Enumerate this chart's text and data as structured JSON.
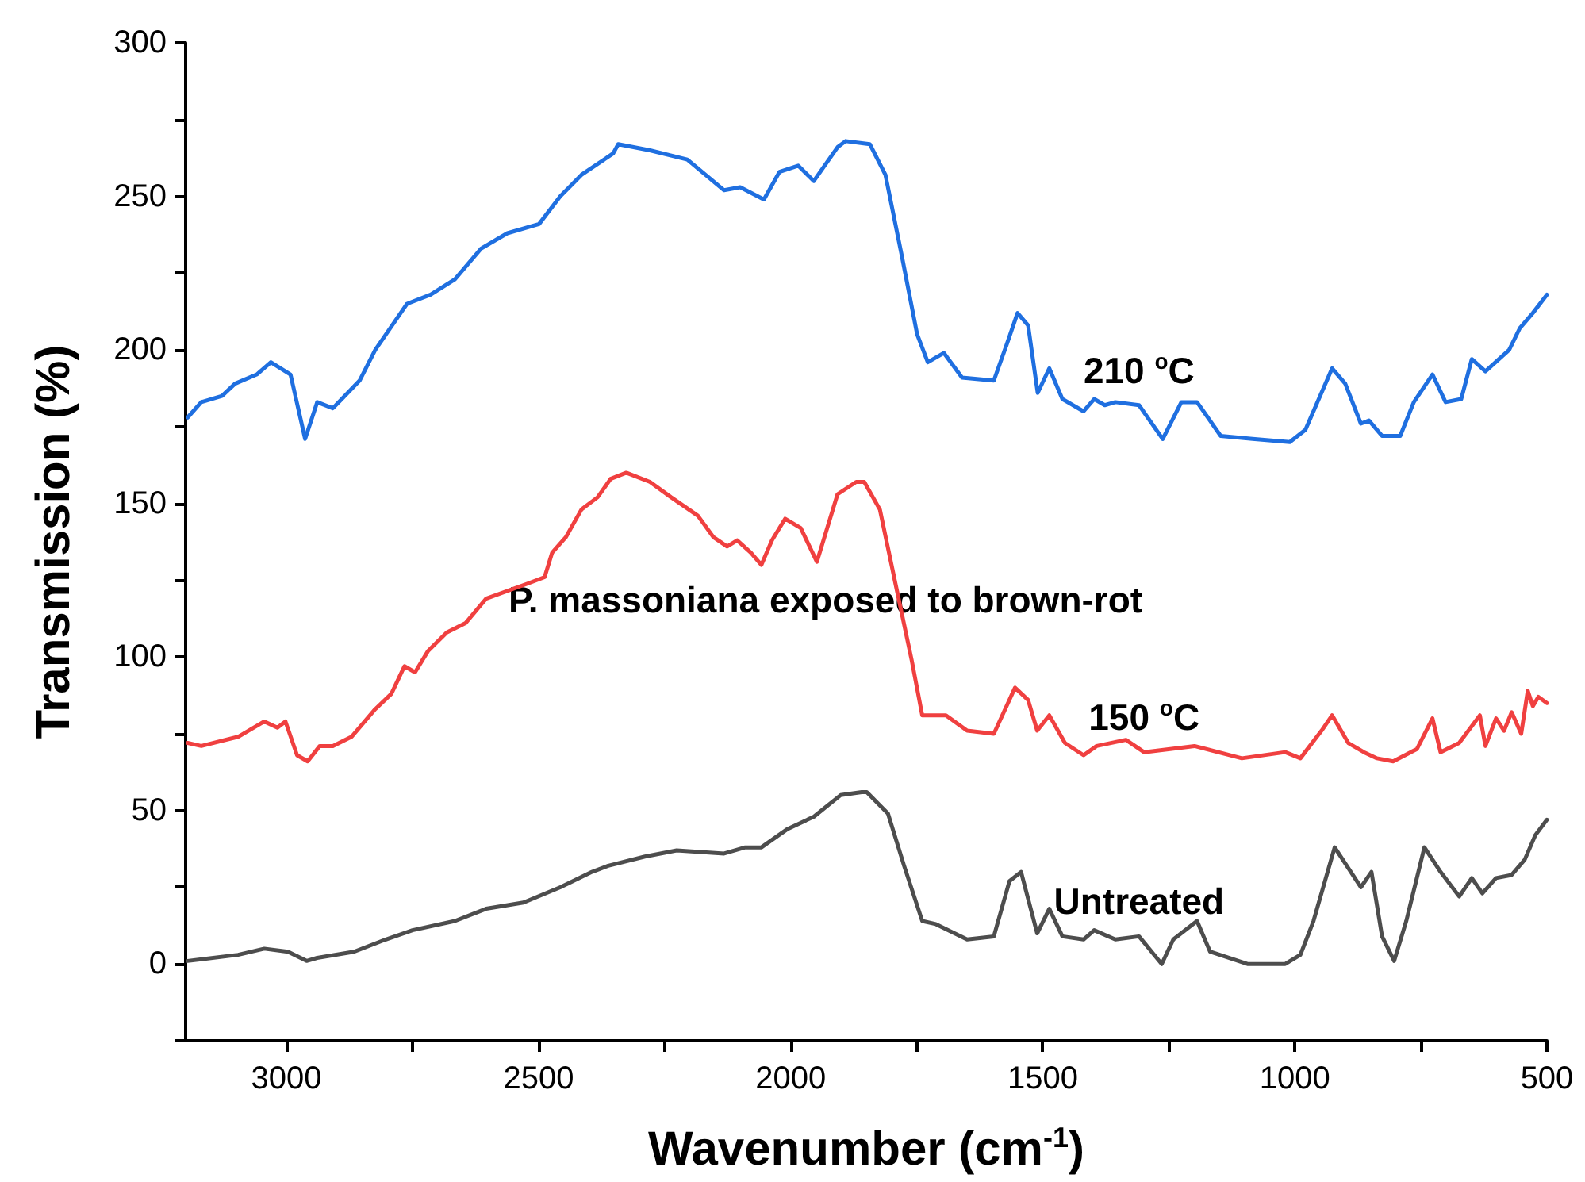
{
  "chart_data": {
    "type": "line",
    "xlabel": "Wavenumber (cm$^{-1}$)",
    "ylabel": "Transmission (%)",
    "xlim": [
      3200,
      500
    ],
    "xticks": [
      3000,
      {
        "value": 2750,
        "label": null
      },
      2500,
      {
        "value": 2250,
        "label": null
      },
      2000,
      {
        "value": 1750,
        "label": null
      },
      1500,
      {
        "value": 1250,
        "label": null
      },
      1000,
      {
        "value": 750,
        "label": null
      },
      500
    ],
    "ylim": [
      -25,
      300
    ],
    "yticks": [
      {
        "value": -25,
        "label": null
      },
      0,
      {
        "value": 25,
        "label": null
      },
      50,
      {
        "value": 75,
        "label": null
      },
      100,
      {
        "value": 125,
        "label": null
      },
      150,
      {
        "value": 175,
        "label": null
      },
      200,
      {
        "value": 225,
        "label": null
      },
      250,
      {
        "value": 275,
        "label": null
      },
      300
    ],
    "grid": false,
    "legend": false,
    "marker": "none",
    "line_style": "solid",
    "series": [
      {
        "name": "210 $^{o}$C",
        "color": "#1f6fe0",
        "x": [
          3196,
          3169,
          3128,
          3102,
          3059,
          3031,
          2992,
          2963,
          2939,
          2908,
          2855,
          2824,
          2761,
          2714,
          2666,
          2614,
          2562,
          2499,
          2457,
          2415,
          2352,
          2342,
          2279,
          2205,
          2132,
          2100,
          2053,
          2022,
          1985,
          1954,
          1907,
          1891,
          1843,
          1812,
          1780,
          1749,
          1728,
          1696,
          1660,
          1597,
          1571,
          1550,
          1529,
          1510,
          1487,
          1461,
          1419,
          1398,
          1377,
          1356,
          1309,
          1262,
          1225,
          1194,
          1147,
          1084,
          1010,
          979,
          926,
          900,
          869,
          853,
          827,
          791,
          764,
          727,
          701,
          670,
          649,
          622,
          575,
          554,
          528,
          500
        ],
        "values": [
          178,
          183,
          185,
          189,
          192,
          196,
          192,
          171,
          183,
          181,
          190,
          200,
          215,
          218,
          223,
          233,
          238,
          241,
          250,
          257,
          264,
          267,
          265,
          262,
          252,
          253,
          249,
          258,
          260,
          255,
          266,
          268,
          267,
          257,
          231,
          205,
          196,
          199,
          191,
          190,
          202,
          212,
          208,
          186,
          194,
          184,
          180,
          184,
          182,
          183,
          182,
          171,
          183,
          183,
          172,
          171,
          170,
          174,
          194,
          189,
          176,
          177,
          172,
          172,
          183,
          192,
          183,
          184,
          197,
          193,
          200,
          207,
          212,
          218
        ]
      },
      {
        "name": "150 $^{o}$C",
        "color": "#f04040",
        "x": [
          3196,
          3169,
          3096,
          3044,
          3018,
          3002,
          2979,
          2958,
          2934,
          2908,
          2871,
          2824,
          2792,
          2766,
          2745,
          2719,
          2682,
          2645,
          2604,
          2520,
          2488,
          2473,
          2446,
          2415,
          2383,
          2357,
          2326,
          2279,
          2237,
          2184,
          2153,
          2126,
          2106,
          2079,
          2058,
          2037,
          2011,
          1980,
          1948,
          1907,
          1870,
          1854,
          1823,
          1791,
          1760,
          1739,
          1692,
          1650,
          1597,
          1555,
          1529,
          1511,
          1487,
          1456,
          1419,
          1393,
          1335,
          1299,
          1199,
          1105,
          1019,
          989,
          947,
          926,
          894,
          863,
          837,
          805,
          758,
          727,
          711,
          674,
          633,
          622,
          601,
          585,
          570,
          551,
          538,
          528,
          517,
          500
        ],
        "values": [
          72,
          71,
          74,
          79,
          77,
          79,
          68,
          66,
          71,
          71,
          74,
          83,
          88,
          97,
          95,
          102,
          108,
          111,
          119,
          124,
          126,
          134,
          139,
          148,
          152,
          158,
          160,
          157,
          152,
          146,
          139,
          136,
          138,
          134,
          130,
          138,
          145,
          142,
          131,
          153,
          157,
          157,
          148,
          123,
          99,
          81,
          81,
          76,
          75,
          90,
          86,
          76,
          81,
          72,
          68,
          71,
          73,
          69,
          71,
          67,
          69,
          67,
          76,
          81,
          72,
          69,
          67,
          66,
          70,
          80,
          69,
          72,
          81,
          71,
          80,
          76,
          82,
          75,
          89,
          84,
          87,
          85
        ]
      },
      {
        "name": "Untreated",
        "color": "#4d4d4d",
        "x": [
          3196,
          3096,
          3044,
          2997,
          2960,
          2939,
          2866,
          2803,
          2750,
          2666,
          2604,
          2530,
          2457,
          2394,
          2362,
          2289,
          2226,
          2132,
          2090,
          2058,
          2006,
          1954,
          1901,
          1859,
          1849,
          1807,
          1775,
          1739,
          1712,
          1650,
          1597,
          1566,
          1543,
          1511,
          1487,
          1461,
          1419,
          1398,
          1356,
          1309,
          1264,
          1241,
          1194,
          1168,
          1094,
          1019,
          989,
          963,
          921,
          869,
          848,
          827,
          803,
          779,
          743,
          711,
          674,
          649,
          628,
          601,
          570,
          544,
          523,
          500
        ],
        "values": [
          1,
          3,
          5,
          4,
          1,
          2,
          4,
          8,
          11,
          14,
          18,
          20,
          25,
          30,
          32,
          35,
          37,
          36,
          38,
          38,
          44,
          48,
          55,
          56,
          56,
          49,
          32,
          14,
          13,
          8,
          9,
          27,
          30,
          10,
          18,
          9,
          8,
          11,
          8,
          9,
          0,
          8,
          14,
          4,
          0,
          0,
          3,
          14,
          38,
          25,
          30,
          9,
          1,
          14,
          38,
          30,
          22,
          28,
          23,
          28,
          29,
          34,
          42,
          47
        ]
      }
    ],
    "annotations": [
      "P. massoniana exposed to brown-rot"
    ]
  }
}
